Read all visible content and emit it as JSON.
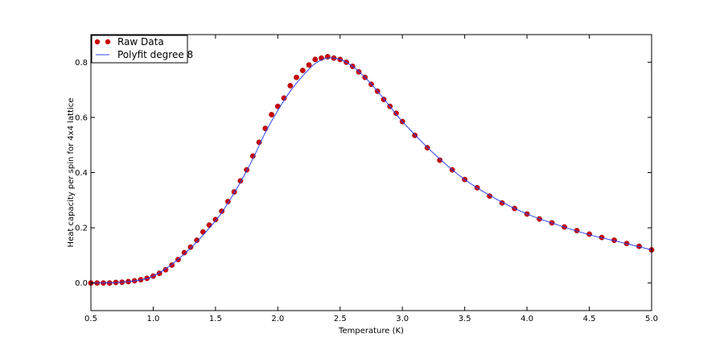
{
  "chart_data": {
    "type": "scatter",
    "xlabel": "Temperature (K)",
    "ylabel": "Heat capacity per spin for 4x4 lattice",
    "xlim": [
      0.5,
      5.0
    ],
    "ylim": [
      -0.1,
      0.9
    ],
    "x_ticks": [
      "0.5",
      "1.0",
      "1.5",
      "2.0",
      "2.5",
      "3.0",
      "3.5",
      "4.0",
      "4.5",
      "5.0"
    ],
    "y_ticks": [
      "0.0",
      "0.2",
      "0.4",
      "0.6",
      "0.8"
    ],
    "grid": false,
    "legend_position": "top-left",
    "series": [
      {
        "name": "Raw Data",
        "kind": "markers",
        "color": "#cc0000",
        "x": [
          0.5,
          0.55,
          0.6,
          0.65,
          0.7,
          0.75,
          0.8,
          0.85,
          0.9,
          0.95,
          1.0,
          1.05,
          1.1,
          1.15,
          1.2,
          1.25,
          1.3,
          1.35,
          1.4,
          1.45,
          1.5,
          1.55,
          1.6,
          1.65,
          1.7,
          1.75,
          1.8,
          1.85,
          1.9,
          1.95,
          2.0,
          2.05,
          2.1,
          2.15,
          2.2,
          2.25,
          2.3,
          2.35,
          2.4,
          2.45,
          2.5,
          2.55,
          2.6,
          2.65,
          2.7,
          2.75,
          2.8,
          2.85,
          2.9,
          2.95,
          3.0,
          3.1,
          3.2,
          3.3,
          3.4,
          3.5,
          3.6,
          3.7,
          3.8,
          3.9,
          4.0,
          4.1,
          4.2,
          4.3,
          4.4,
          4.5,
          4.6,
          4.7,
          4.8,
          4.9,
          5.0
        ],
        "y": [
          0.0,
          0.0,
          0.0,
          0.0,
          0.002,
          0.003,
          0.005,
          0.008,
          0.012,
          0.017,
          0.025,
          0.035,
          0.048,
          0.065,
          0.085,
          0.11,
          0.13,
          0.155,
          0.185,
          0.21,
          0.23,
          0.26,
          0.295,
          0.33,
          0.37,
          0.41,
          0.46,
          0.51,
          0.56,
          0.61,
          0.64,
          0.67,
          0.715,
          0.745,
          0.77,
          0.79,
          0.81,
          0.815,
          0.82,
          0.815,
          0.81,
          0.8,
          0.785,
          0.765,
          0.745,
          0.72,
          0.695,
          0.665,
          0.64,
          0.615,
          0.585,
          0.535,
          0.49,
          0.445,
          0.41,
          0.375,
          0.345,
          0.315,
          0.29,
          0.27,
          0.25,
          0.232,
          0.218,
          0.203,
          0.19,
          0.177,
          0.165,
          0.155,
          0.143,
          0.133,
          0.12
        ]
      },
      {
        "name": "Polyfit degree 8",
        "kind": "line",
        "color": "#3344ee",
        "x": [
          0.5,
          0.75,
          1.0,
          1.25,
          1.5,
          1.6,
          1.7,
          1.8,
          1.9,
          2.0,
          2.1,
          2.2,
          2.3,
          2.4,
          2.5,
          2.6,
          2.7,
          2.8,
          2.9,
          3.0,
          3.25,
          3.5,
          3.75,
          4.0,
          4.25,
          4.5,
          4.75,
          5.0
        ],
        "y": [
          0.0,
          0.003,
          0.025,
          0.105,
          0.225,
          0.29,
          0.365,
          0.45,
          0.545,
          0.625,
          0.695,
          0.75,
          0.795,
          0.815,
          0.81,
          0.785,
          0.745,
          0.695,
          0.64,
          0.585,
          0.47,
          0.375,
          0.305,
          0.25,
          0.21,
          0.175,
          0.148,
          0.12
        ]
      }
    ]
  }
}
